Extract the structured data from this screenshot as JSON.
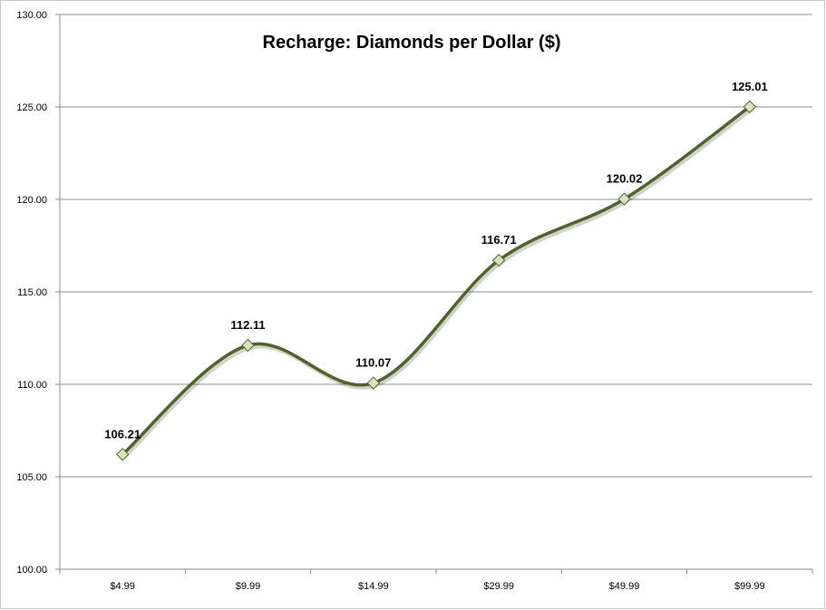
{
  "chart_data": {
    "type": "line",
    "title": "Recharge: Diamonds per Dollar ($)",
    "xlabel": "",
    "ylabel": "",
    "categories": [
      "$4.99",
      "$9.99",
      "$14.99",
      "$29.99",
      "$49.99",
      "$99.99"
    ],
    "series": [
      {
        "values": [
          106.21,
          112.11,
          110.07,
          116.71,
          120.02,
          125.01
        ],
        "data_labels": [
          "106.21",
          "112.11",
          "110.07",
          "116.71",
          "120.02",
          "125.01"
        ],
        "line_color": "#4f6228",
        "marker": "diamond",
        "marker_fill": "#d7e4bd",
        "marker_stroke": "#4f6228",
        "smoothed": true
      }
    ],
    "ylim": [
      100,
      130
    ],
    "yticks": [
      "100.00",
      "105.00",
      "110.00",
      "115.00",
      "120.00",
      "125.00",
      "130.00"
    ],
    "grid": true,
    "legend": "none"
  }
}
